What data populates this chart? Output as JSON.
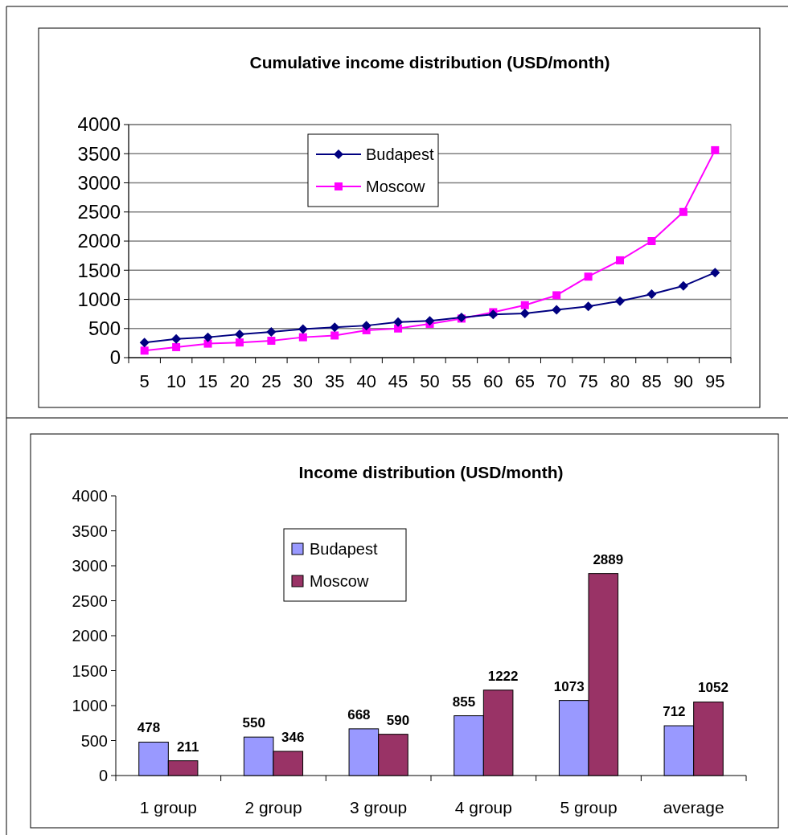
{
  "chart_data": [
    {
      "type": "line",
      "title": "Cumulative income distribution (USD/month)",
      "categories": [
        "5",
        "10",
        "15",
        "20",
        "25",
        "30",
        "35",
        "40",
        "45",
        "50",
        "55",
        "60",
        "65",
        "70",
        "75",
        "80",
        "85",
        "90",
        "95"
      ],
      "ylim": [
        0,
        4000
      ],
      "yticks": [
        0,
        500,
        1000,
        1500,
        2000,
        2500,
        3000,
        3500,
        4000
      ],
      "grid": "y",
      "legend": "top",
      "line_style": "solid",
      "series": [
        {
          "name": "Budapest",
          "color": "#000080",
          "marker": "diamond",
          "values": [
            260,
            320,
            350,
            400,
            440,
            490,
            520,
            550,
            610,
            630,
            690,
            740,
            760,
            820,
            880,
            970,
            1090,
            1230,
            1460
          ]
        },
        {
          "name": "Moscow",
          "color": "#ff00ff",
          "marker": "square",
          "values": [
            120,
            180,
            240,
            260,
            290,
            350,
            380,
            470,
            500,
            580,
            670,
            780,
            900,
            1070,
            1390,
            1670,
            2000,
            2500,
            3560
          ]
        }
      ]
    },
    {
      "type": "bar",
      "title": "Income distribution (USD/month)",
      "categories": [
        "1 group",
        "2 group",
        "3 group",
        "4 group",
        "5 group",
        "average"
      ],
      "ylim": [
        0,
        4000
      ],
      "yticks": [
        0,
        500,
        1000,
        1500,
        2000,
        2500,
        3000,
        3500,
        4000
      ],
      "grid": false,
      "legend": "top",
      "data_labels": true,
      "series": [
        {
          "name": "Budapest",
          "color": "#9999ff",
          "values": [
            478,
            550,
            668,
            855,
            1073,
            712
          ]
        },
        {
          "name": "Moscow",
          "color": "#993366",
          "values": [
            211,
            346,
            590,
            1222,
            2889,
            1052
          ]
        }
      ]
    }
  ]
}
